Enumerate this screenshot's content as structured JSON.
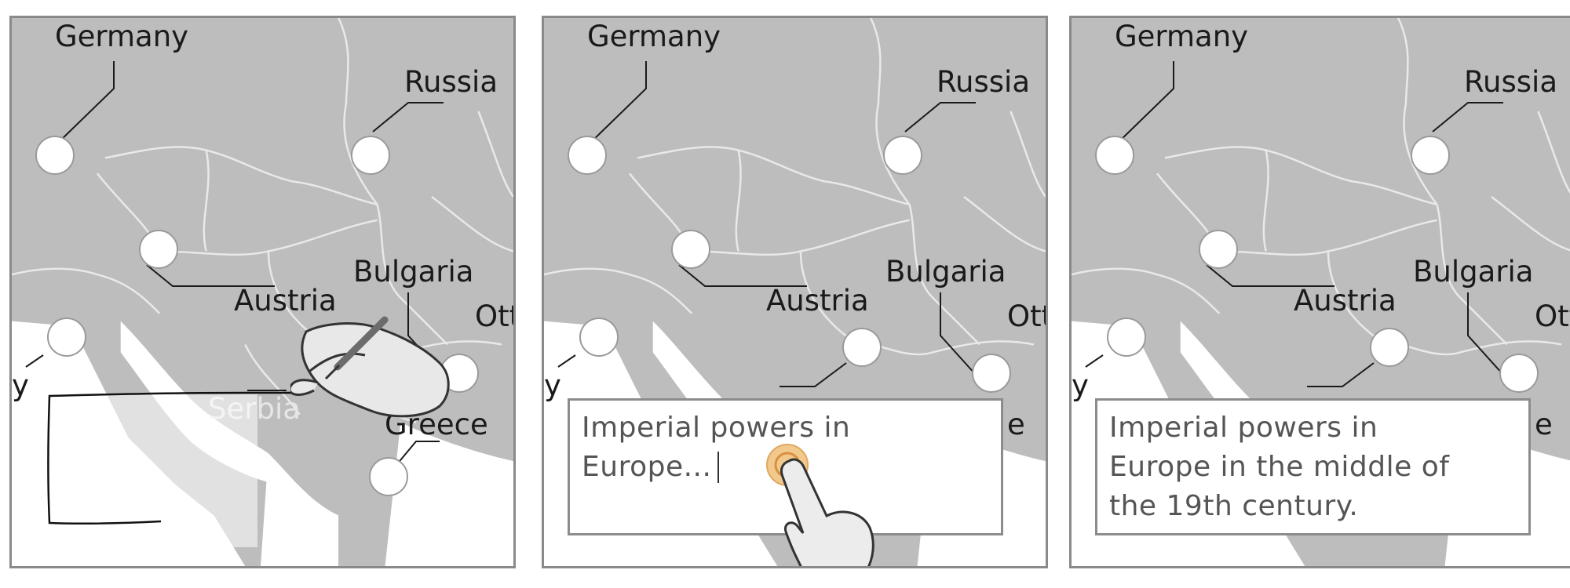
{
  "labels": {
    "germany": "Germany",
    "russia": "Russia",
    "austria": "Austria",
    "bulgaria": "Bulgaria",
    "ottoman_partial": "Ott",
    "italy_partial": "y",
    "serbia": "Serbia",
    "greece": "Greece",
    "caption_fragment_e": "e"
  },
  "text_box": {
    "typing_value": "Imperial powers in Europe...",
    "final_line_1": "Imperial powers in",
    "final_line_2": "Europe in the middle of",
    "final_line_3": "the 19th century.",
    "typing_line_1": "Imperial powers in",
    "typing_line_2": "Europe..."
  },
  "colors": {
    "land": "#bdbdbd",
    "borders": "#e9e9e9",
    "sea": "#ffffff",
    "pin_fill": "#ffffff",
    "pin_stroke": "#9a9a9a",
    "tap_indicator": "#f2c98c",
    "frame": "#8a8a8a"
  },
  "icons": {
    "stylus_hand": "hand-with-stylus-icon",
    "tap_hand": "pointing-hand-icon",
    "tap_ring": "tap-indicator-icon"
  }
}
